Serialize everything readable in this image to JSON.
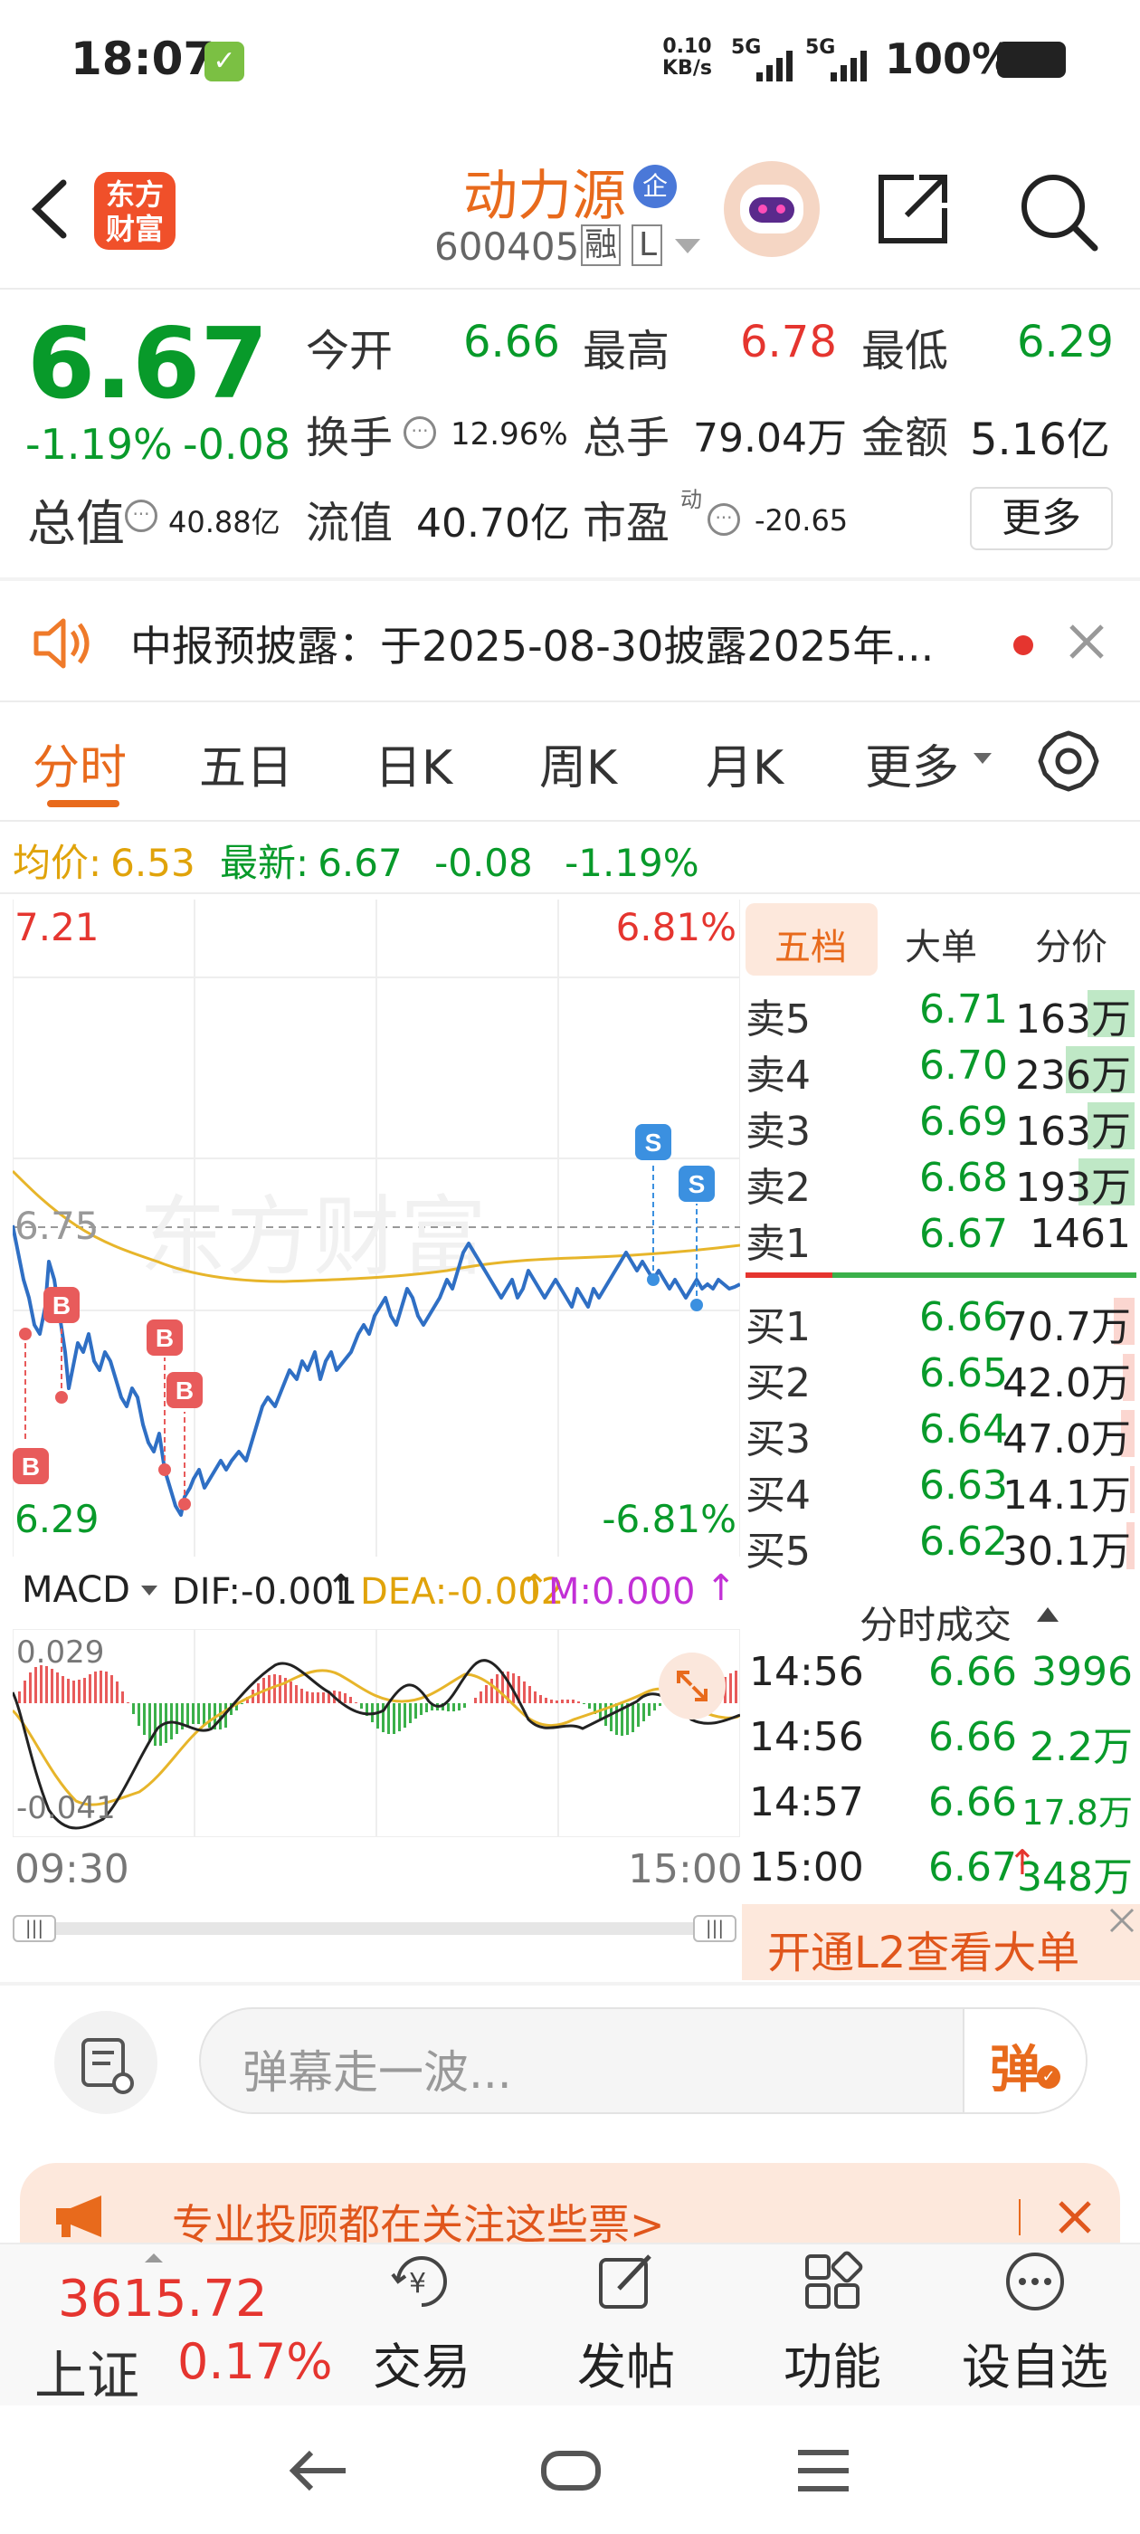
{
  "status": {
    "time": "18:07",
    "net_speed_value": "0.10",
    "net_speed_unit": "KB/s",
    "signal1": "5G",
    "signal2": "5G",
    "battery": "100%"
  },
  "header": {
    "logo_line1": "东方",
    "logo_line2": "财富",
    "stock_name": "动力源",
    "corp_badge": "企",
    "stock_code": "600405",
    "margin_tag": "融",
    "l2_tag": "L"
  },
  "quote": {
    "price": "6.67",
    "change_pct": "-1.19%",
    "change_amt": "-0.08",
    "open_label": "今开",
    "open": "6.66",
    "high_label": "最高",
    "high": "6.78",
    "low_label": "最低",
    "low": "6.29",
    "turnover_label": "换手",
    "turnover": "12.96%",
    "volume_label": "总手",
    "volume": "79.04万",
    "amount_label": "金额",
    "amount": "5.16亿",
    "mktcap_label": "总值",
    "mktcap": "40.88亿",
    "float_label": "流值",
    "float": "40.70亿",
    "pe_label": "市盈",
    "pe_sup": "动",
    "pe": "-20.65",
    "more_button": "更多"
  },
  "notice": {
    "text": "中报预披露：于2025-08-30披露2025年..."
  },
  "tabs": [
    "分时",
    "五日",
    "日K",
    "周K",
    "月K",
    "更多"
  ],
  "avg_bar": {
    "avg_label": "均价:",
    "avg": "6.53",
    "last_label": "最新:",
    "last": "6.67",
    "chg": "-0.08",
    "pct": "-1.19%"
  },
  "chart": {
    "y_max": "7.21",
    "y_min": "6.29",
    "pct_max": "6.81%",
    "pct_min": "-6.81%",
    "ref_price": "6.75",
    "watermark": "东方财富",
    "time_start": "09:30",
    "time_end": "15:00",
    "buy_marker": "B",
    "sell_marker": "S"
  },
  "macd": {
    "selector": "MACD",
    "dif": "DIF:-0.001",
    "dea": "DEA:-0.002",
    "m": "M:0.000",
    "top": "0.029",
    "bottom": "-0.041"
  },
  "book": {
    "tabs": [
      "五档",
      "大单",
      "分价"
    ],
    "asks": [
      {
        "k": "卖5",
        "p": "6.71",
        "v": "163万",
        "w": 0.62
      },
      {
        "k": "卖4",
        "p": "6.70",
        "v": "236万",
        "w": 0.9
      },
      {
        "k": "卖3",
        "p": "6.69",
        "v": "163万",
        "w": 0.62
      },
      {
        "k": "卖2",
        "p": "6.68",
        "v": "193万",
        "w": 0.74
      },
      {
        "k": "卖1",
        "p": "6.67",
        "v": "1461",
        "w": 0
      }
    ],
    "bids": [
      {
        "k": "买1",
        "p": "6.66",
        "v": "70.7万",
        "w": 0.27
      },
      {
        "k": "买2",
        "p": "6.65",
        "v": "42.0万",
        "w": 0.16
      },
      {
        "k": "买3",
        "p": "6.64",
        "v": "47.0万",
        "w": 0.18
      },
      {
        "k": "买4",
        "p": "6.63",
        "v": "14.1万",
        "w": 0.06
      },
      {
        "k": "买5",
        "p": "6.62",
        "v": "30.1万",
        "w": 0.11
      }
    ],
    "trades_title": "分时成交",
    "trades": [
      {
        "t": "14:56",
        "p": "6.66",
        "v": "3996"
      },
      {
        "t": "14:56",
        "p": "6.66",
        "v": "2.2万"
      },
      {
        "t": "14:57",
        "p": "6.66",
        "v": "17.8万"
      },
      {
        "t": "15:00",
        "p": "6.67",
        "v": "348万"
      }
    ],
    "l2_banner": "开通L2查看大单"
  },
  "comment": {
    "placeholder": "弹幕走一波...",
    "send": "弹"
  },
  "promo": {
    "text": "专业投顾都在关注这些票>"
  },
  "bottom": {
    "index_value": "3615.72",
    "index_name": "上证",
    "index_pct": "0.17%",
    "nav": [
      "交易",
      "发帖",
      "功能",
      "设自选"
    ]
  }
}
